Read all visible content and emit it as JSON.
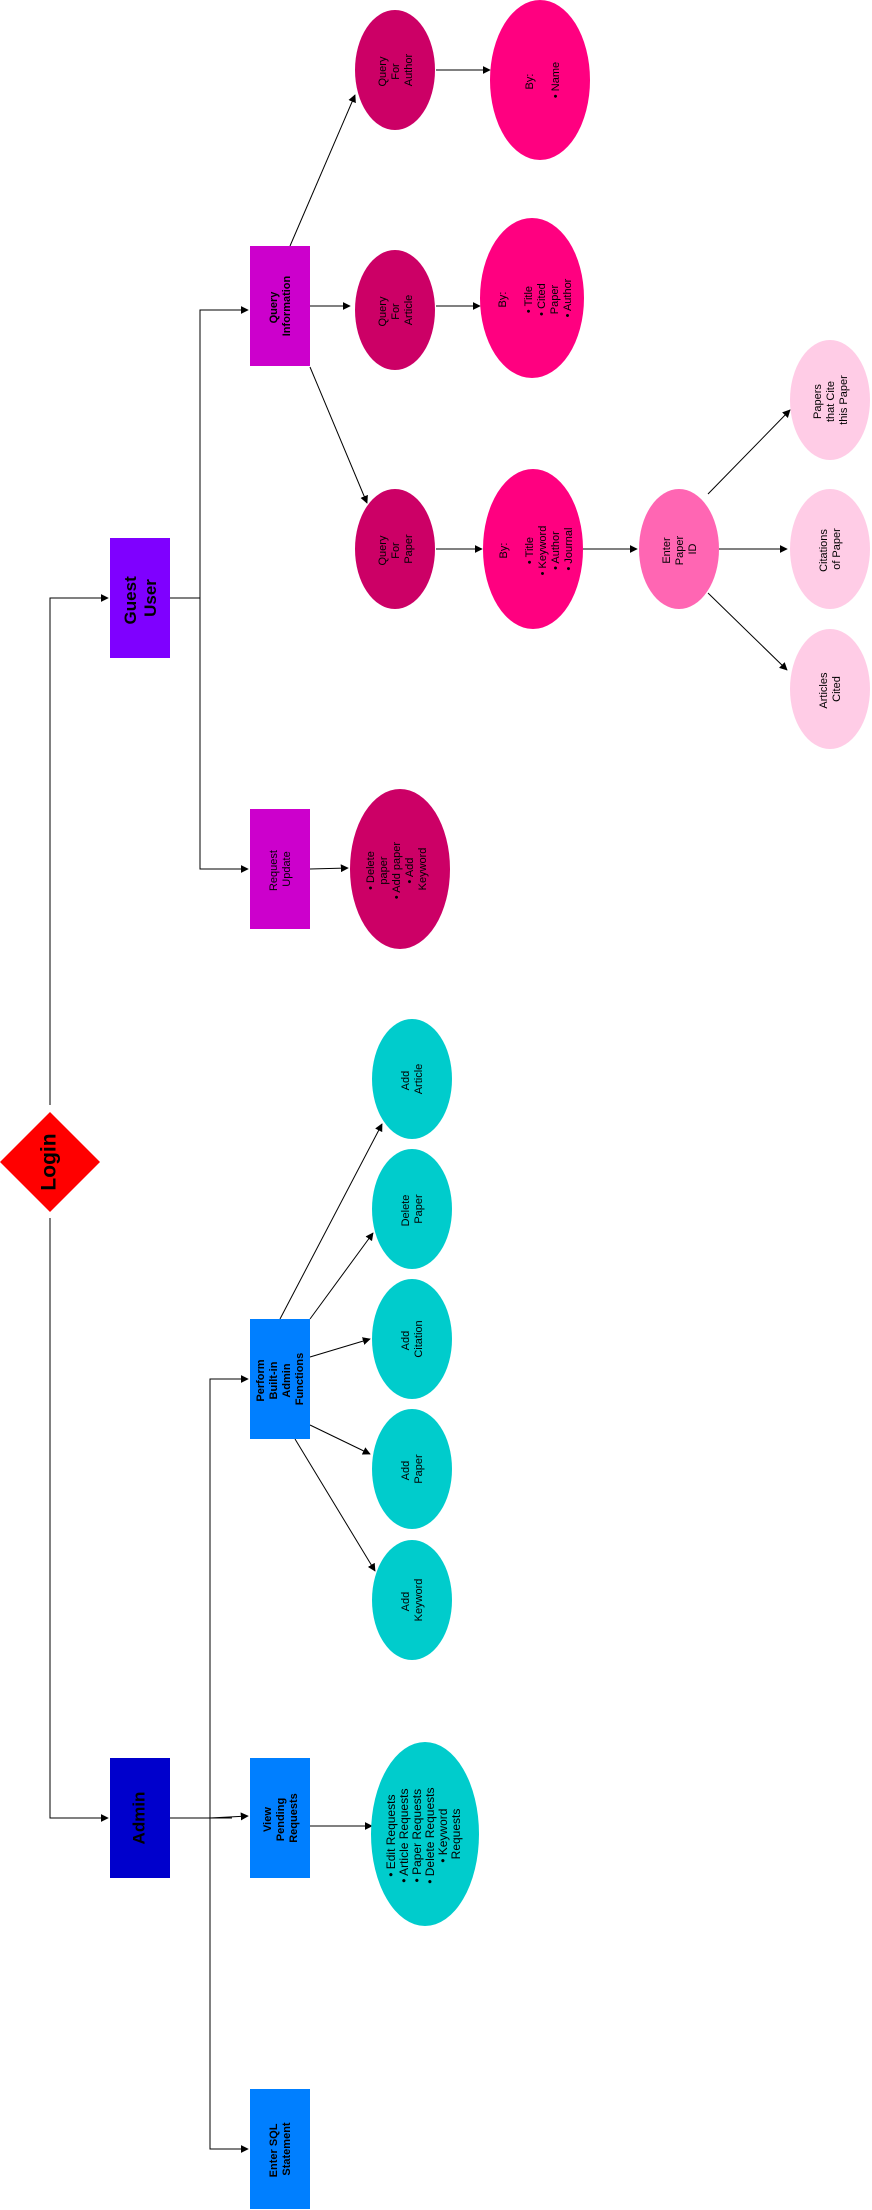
{
  "login": "Login",
  "guest_user": [
    "Guest",
    "User"
  ],
  "admin": "Admin",
  "query_information": [
    "Query",
    "Information"
  ],
  "request_update": [
    "Request",
    "Update"
  ],
  "request_update_list": [
    "• Delete",
    "  paper",
    "• Add paper",
    "• Add",
    "  Keyword"
  ],
  "query_author": [
    "Query",
    "For",
    "Author"
  ],
  "query_article": [
    "Query",
    "For",
    "Article"
  ],
  "query_paper": [
    "Query",
    "For",
    "Paper"
  ],
  "author_by": [
    "By:",
    "",
    "• Name"
  ],
  "article_by": [
    "By:",
    "",
    "• Title",
    "• Cited",
    "  Paper",
    "• Author"
  ],
  "paper_by": [
    "By:",
    "",
    "• Title",
    "• Keyword",
    "• Author",
    "• Journal"
  ],
  "enter_paper_id": [
    "Enter",
    "Paper",
    "ID"
  ],
  "papers_that_cite": [
    "Papers",
    "that Cite",
    "this Paper"
  ],
  "citations_of_paper": [
    "Citations",
    "of Paper"
  ],
  "articles_cited": [
    "Articles",
    "Cited"
  ],
  "perform_builtin": [
    "Perform",
    "Built-in",
    "Admin",
    "Functions"
  ],
  "view_pending": [
    "View",
    "Pending",
    "Requests"
  ],
  "enter_sql": [
    "Enter SQL",
    "Statement"
  ],
  "add_article": [
    "Add",
    "Article"
  ],
  "delete_paper": [
    "Delete",
    "Paper"
  ],
  "add_citation": [
    "Add",
    "Citation"
  ],
  "add_paper": [
    "Add",
    "Paper"
  ],
  "add_keyword": [
    "Add",
    "Keyword"
  ],
  "pending_list": [
    "• Edit Requests",
    "• Article Requests",
    "• Paper Requests",
    "• Delete Requests",
    "• Keyword",
    "  Requests"
  ],
  "colors": {
    "login": "#ff0000",
    "guest_user": "#7f00ff",
    "admin": "#0000cc",
    "guest_action": "#cc00cc",
    "query_node": "#cc0066",
    "by_node": "#ff0080",
    "enter_id": "#ff66b3",
    "result_node": "#ffcce6",
    "admin_action": "#007fff",
    "admin_leaf": "#00cccc"
  }
}
